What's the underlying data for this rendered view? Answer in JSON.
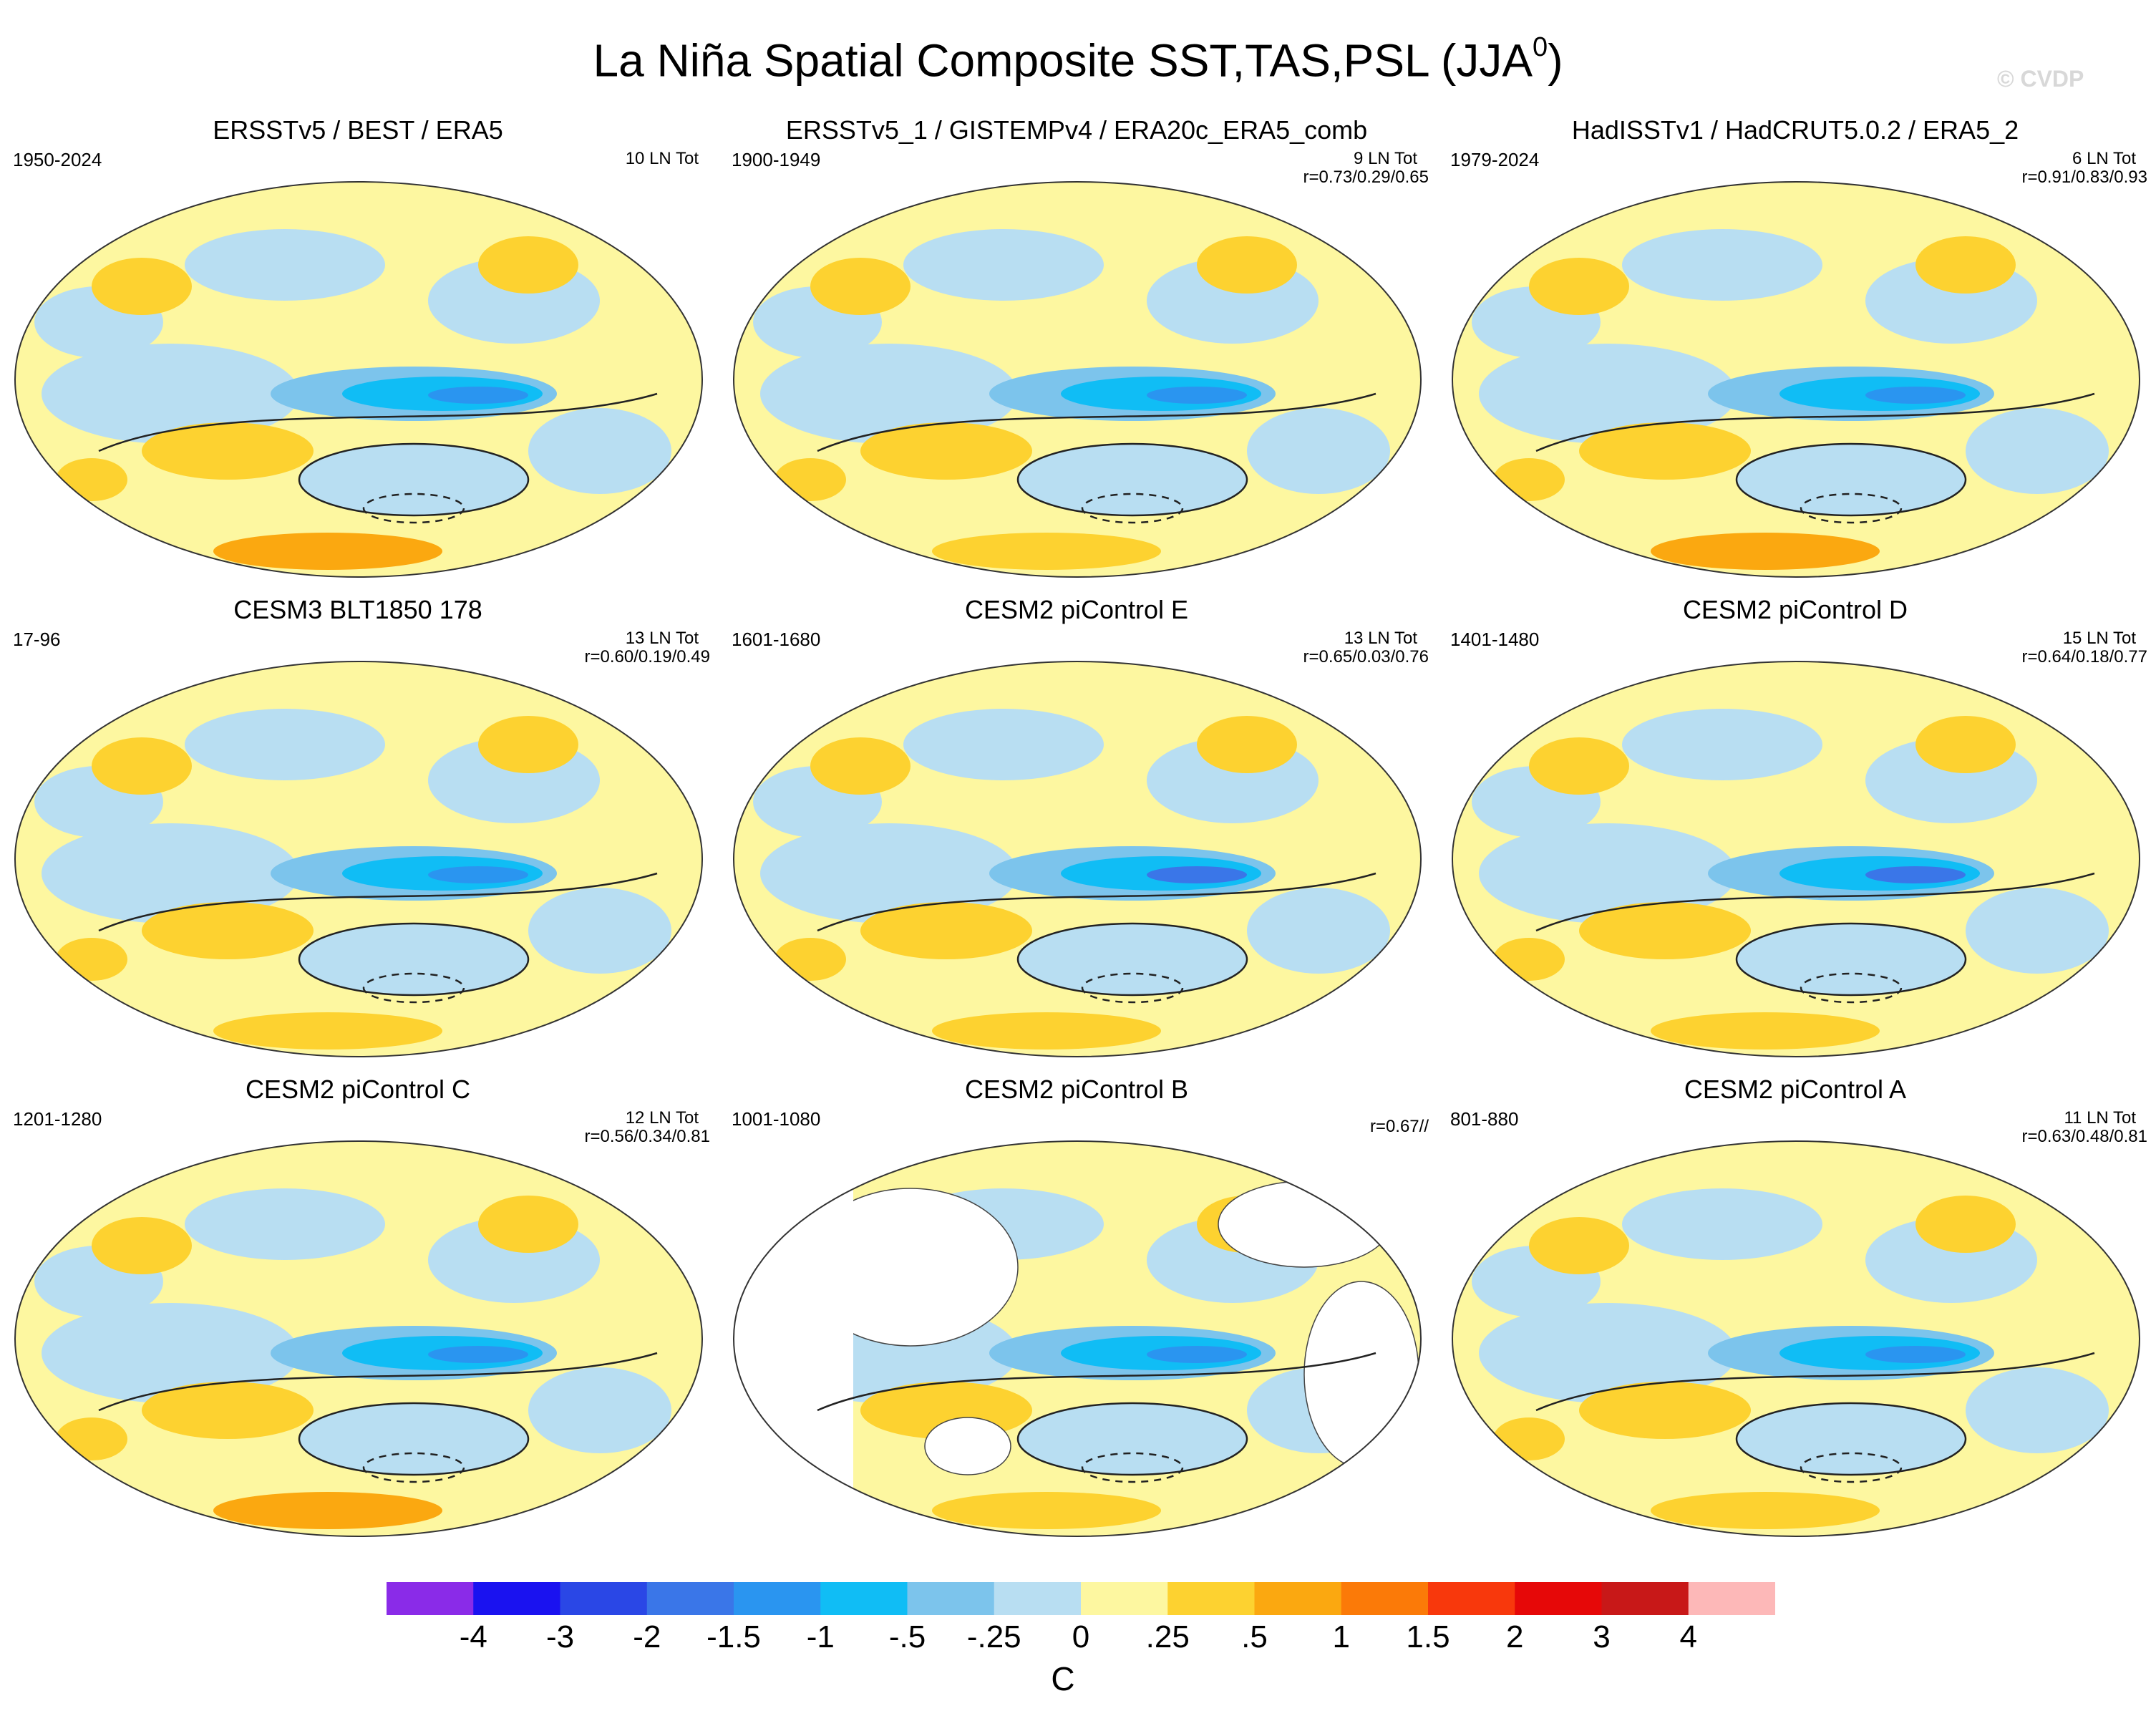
{
  "figure": {
    "title_main": "La Niña Spatial Composite SST,TAS,PSL (JJA",
    "title_sup": "0",
    "title_end": ")",
    "watermark": "© CVDP",
    "units": "C"
  },
  "panels": [
    {
      "title": "ERSSTv5 / BEST / ERA5",
      "period": "1950-2024",
      "count": "10 LN Tot",
      "corr": ""
    },
    {
      "title": "ERSSTv5_1 / GISTEMPv4 / ERA20c_ERA5_comb",
      "period": "1900-1949",
      "count": "9 LN Tot",
      "corr": "r=0.73/0.29/0.65"
    },
    {
      "title": "HadISSTv1 / HadCRUT5.0.2 / ERA5_2",
      "period": "1979-2024",
      "count": "6 LN Tot",
      "corr": "r=0.91/0.83/0.93"
    },
    {
      "title": "CESM3 BLT1850 178",
      "period": "17-96",
      "count": "13 LN Tot",
      "corr": "r=0.60/0.19/0.49"
    },
    {
      "title": "CESM2 piControl E",
      "period": "1601-1680",
      "count": "13 LN Tot",
      "corr": "r=0.65/0.03/0.76"
    },
    {
      "title": "CESM2 piControl D",
      "period": "1401-1480",
      "count": "15 LN Tot",
      "corr": "r=0.64/0.18/0.77"
    },
    {
      "title": "CESM2 piControl C",
      "period": "1201-1280",
      "count": "12 LN Tot",
      "corr": "r=0.56/0.34/0.81"
    },
    {
      "title": "CESM2 piControl B",
      "period": "1001-1080",
      "count": "",
      "corr": "r=0.67//"
    },
    {
      "title": "CESM2 piControl A",
      "period": "801-880",
      "count": "11 LN Tot",
      "corr": "r=0.63/0.48/0.81"
    }
  ],
  "colorbar": {
    "labels": [
      "-4",
      "-3",
      "-2",
      "-1.5",
      "-1",
      "-.5",
      "-.25",
      "0",
      ".25",
      ".5",
      "1",
      "1.5",
      "2",
      "3",
      "4"
    ],
    "colors": [
      "#8a2be8",
      "#1a12f0",
      "#2a47e6",
      "#3a76e8",
      "#2a95f0",
      "#10bdf5",
      "#7cc4ec",
      "#b8def2",
      "#fdf7a0",
      "#fdd230",
      "#fba810",
      "#fb7a08",
      "#f8380c",
      "#e60808",
      "#c81818",
      "#fdb8b8"
    ]
  },
  "chart_data": {
    "type": "heatmap",
    "title": "La Niña Spatial Composite SST,TAS,PSL (JJA0)",
    "variable": "SST/TAS shaded (C), PSL contours",
    "projection": "Robinson global map, Pacific-centered",
    "color_levels": [
      -4,
      -3,
      -2,
      -1.5,
      -1,
      -0.5,
      -0.25,
      0,
      0.25,
      0.5,
      1,
      1.5,
      2,
      3,
      4
    ],
    "units": "C",
    "series": [
      {
        "name": "ERSSTv5 / BEST / ERA5",
        "period": "1950-2024",
        "ln_events": 10
      },
      {
        "name": "ERSSTv5_1 / GISTEMPv4 / ERA20c_ERA5_comb",
        "period": "1900-1949",
        "ln_events": 9,
        "pattern_corr": [
          0.73,
          0.29,
          0.65
        ]
      },
      {
        "name": "HadISSTv1 / HadCRUT5.0.2 / ERA5_2",
        "period": "1979-2024",
        "ln_events": 6,
        "pattern_corr": [
          0.91,
          0.83,
          0.93
        ]
      },
      {
        "name": "CESM3 BLT1850 178",
        "period": "17-96",
        "ln_events": 13,
        "pattern_corr": [
          0.6,
          0.19,
          0.49
        ]
      },
      {
        "name": "CESM2 piControl E",
        "period": "1601-1680",
        "ln_events": 13,
        "pattern_corr": [
          0.65,
          0.03,
          0.76
        ]
      },
      {
        "name": "CESM2 piControl D",
        "period": "1401-1480",
        "ln_events": 15,
        "pattern_corr": [
          0.64,
          0.18,
          0.77
        ]
      },
      {
        "name": "CESM2 piControl C",
        "period": "1201-1280",
        "ln_events": 12,
        "pattern_corr": [
          0.56,
          0.34,
          0.81
        ]
      },
      {
        "name": "CESM2 piControl B",
        "period": "1001-1080",
        "pattern_corr": [
          0.67
        ]
      },
      {
        "name": "CESM2 piControl A",
        "period": "801-880",
        "ln_events": 11,
        "pattern_corr": [
          0.63,
          0.48,
          0.81
        ]
      }
    ]
  }
}
